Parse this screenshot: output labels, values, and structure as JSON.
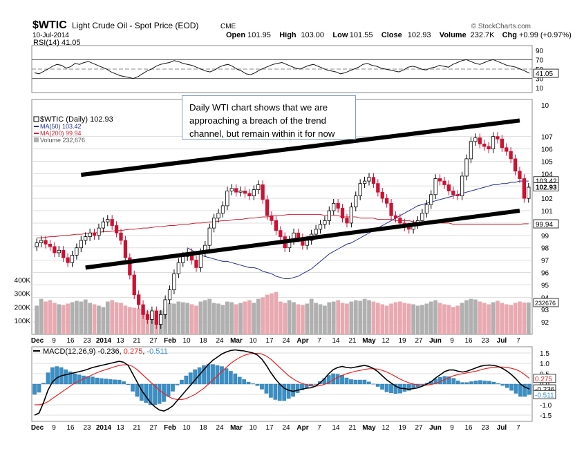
{
  "header": {
    "symbol": "$WTIC",
    "name": "Light Crude Oil - Spot Price (EOD)",
    "exchange": "CME",
    "date": "10-Jul-2014",
    "brand": "© StockCharts.com",
    "stats": [
      {
        "label": "Open",
        "value": "101.95"
      },
      {
        "label": "High",
        "value": "103.00"
      },
      {
        "label": "Low",
        "value": "101.55"
      },
      {
        "label": "Close",
        "value": "102.93"
      },
      {
        "label": "Volume",
        "value": "232.7K"
      },
      {
        "label": "Chg",
        "value": "+0.99 (+0.97%)"
      }
    ]
  },
  "annotation": {
    "lines": [
      "Daily WTI chart shows that we are",
      "approaching a breach of the trend",
      "channel, but remain within it for now"
    ]
  },
  "colors": {
    "up": "#000000",
    "down": "#cc1133",
    "ma50": "#1f2e8f",
    "ma200": "#cc2233",
    "vol_up": "#b0b0b0",
    "vol_down": "#e8a9b1",
    "macd_hist": "#3a8fc4",
    "signal": "#ee2222",
    "grid": "#dddddd",
    "trendline": "#000000"
  },
  "chart_data": [
    {
      "type": "line",
      "title": "RSI(14) 41.05",
      "ylim": [
        0,
        100
      ],
      "ticks": [
        "90",
        "70",
        "50",
        "30",
        "10"
      ],
      "tick_values": [
        90,
        70,
        50,
        30,
        10
      ],
      "last_label": "41.05",
      "series": [
        {
          "name": "RSI(14)",
          "values": [
            42,
            40,
            45,
            50,
            56,
            60,
            58,
            52,
            55,
            62,
            60,
            64,
            66,
            62,
            58,
            54,
            50,
            44,
            40,
            36,
            34,
            32,
            30,
            34,
            40,
            46,
            50,
            56,
            60,
            62,
            64,
            68,
            66,
            62,
            60,
            58,
            54,
            50,
            46,
            44,
            48,
            54,
            58,
            60,
            56,
            50,
            46,
            40,
            38,
            42,
            48,
            52,
            56,
            60,
            62,
            64,
            60,
            56,
            52,
            50,
            54,
            58,
            60,
            56,
            52,
            48,
            46,
            44,
            40,
            42,
            46,
            50,
            54,
            60,
            62,
            58,
            56,
            52,
            50,
            48,
            46,
            44,
            48,
            54,
            56,
            54,
            50,
            48,
            52,
            54,
            58,
            56,
            54,
            60,
            64,
            68,
            70,
            66,
            62,
            60,
            64,
            68,
            70,
            66,
            62,
            58,
            56,
            54,
            50,
            46,
            41
          ]
        }
      ]
    },
    {
      "type": "candlestick",
      "title": "$WTIC (Daily) 102.93",
      "legend": [
        "$WTIC (Daily) 102.93",
        "MA(50) 103.42",
        "MA(200) 99.94",
        "Volume 232,676"
      ],
      "ylim": [
        91,
        110
      ],
      "y_ticks": [
        107,
        106,
        105,
        104,
        103,
        102,
        101,
        100,
        99,
        98,
        97,
        96,
        95,
        94,
        93,
        92
      ],
      "x_tick_labels": [
        "Dec",
        "9",
        "16",
        "23",
        "2014",
        "13",
        "21",
        "27",
        "Feb",
        "10",
        "18",
        "24",
        "Mar",
        "10",
        "17",
        "24",
        "Apr",
        "7",
        "14",
        "21",
        "May",
        "12",
        "19",
        "27",
        "Jun",
        "9",
        "16",
        "23",
        "Jul",
        "7"
      ],
      "x_tick_bold": [
        "Dec",
        "2014",
        "Feb",
        "Mar",
        "Apr",
        "May",
        "Jun",
        "Jul"
      ],
      "close": [
        98.4,
        98.6,
        98.3,
        98.1,
        97.6,
        97.8,
        97.2,
        96.8,
        97.4,
        98.0,
        98.6,
        98.9,
        99.2,
        99.0,
        99.6,
        100.1,
        100.3,
        99.8,
        99.2,
        98.6,
        97.2,
        95.8,
        94.2,
        93.4,
        92.6,
        92.2,
        92.9,
        91.8,
        92.6,
        93.8,
        94.6,
        95.9,
        96.8,
        97.3,
        97.6,
        97.0,
        96.4,
        97.6,
        98.2,
        99.6,
        100.4,
        100.8,
        101.4,
        102.6,
        102.8,
        102.5,
        102.6,
        102.4,
        102.2,
        102.7,
        103.1,
        101.9,
        100.6,
        100.2,
        99.4,
        98.9,
        98.0,
        98.6,
        99.2,
        98.8,
        98.2,
        98.6,
        99.1,
        99.5,
        99.9,
        100.2,
        101.0,
        101.6,
        101.2,
        100.4,
        100.0,
        101.3,
        102.2,
        103.2,
        103.4,
        103.7,
        103.2,
        102.5,
        102.0,
        101.6,
        100.6,
        100.4,
        100.0,
        99.7,
        99.5,
        99.9,
        100.2,
        100.8,
        101.5,
        102.3,
        103.6,
        103.4,
        103.1,
        102.6,
        102.3,
        102.2,
        103.8,
        105.2,
        106.6,
        106.9,
        106.4,
        106.2,
        106.0,
        107.0,
        106.8,
        106.1,
        105.8,
        105.2,
        104.2,
        103.6,
        102.0,
        102.9
      ],
      "ma50": [
        98.0,
        97.8,
        97.6,
        97.4,
        97.3,
        97.2,
        97.1,
        97.0,
        96.9,
        96.9,
        96.8,
        96.7,
        96.6,
        96.5,
        96.4,
        96.4,
        96.3,
        96.1,
        96.0,
        95.9,
        95.7,
        95.6,
        95.5,
        95.5,
        95.6,
        95.7,
        95.9,
        96.1,
        96.3,
        96.6,
        96.9,
        97.2,
        97.5,
        97.7,
        97.9,
        98.1,
        98.3,
        98.4,
        98.6,
        98.8,
        99.0,
        99.2,
        99.4,
        99.6,
        99.8,
        100.0,
        100.2,
        100.4,
        100.6,
        100.8,
        101.0,
        101.2,
        101.4,
        101.5,
        101.6,
        101.7,
        101.8,
        101.9,
        102.0,
        102.1,
        102.2,
        102.3,
        102.4,
        102.5,
        102.6,
        102.7,
        102.8,
        102.9,
        103.0,
        103.1,
        103.1,
        103.2,
        103.2,
        103.3,
        103.3,
        103.4,
        103.4,
        103.4
      ],
      "ma50_start_index": 34,
      "ma200": [
        98.8,
        98.8,
        98.85,
        98.9,
        98.9,
        98.95,
        99.0,
        99.0,
        99.05,
        99.1,
        99.1,
        99.15,
        99.2,
        99.2,
        99.25,
        99.3,
        99.3,
        99.35,
        99.4,
        99.4,
        99.45,
        99.5,
        99.5,
        99.55,
        99.6,
        99.6,
        99.65,
        99.7,
        99.7,
        99.75,
        99.8,
        99.8,
        99.85,
        99.9,
        99.9,
        99.95,
        100.0,
        100.0,
        100.05,
        100.1,
        100.1,
        100.15,
        100.2,
        100.2,
        100.25,
        100.3,
        100.3,
        100.35,
        100.4,
        100.4,
        100.45,
        100.5,
        100.5,
        100.55,
        100.6,
        100.6,
        100.65,
        100.7,
        100.7,
        100.7,
        100.7,
        100.7,
        100.7,
        100.7,
        100.7,
        100.6,
        100.6,
        100.6,
        100.6,
        100.5,
        100.5,
        100.5,
        100.5,
        100.4,
        100.4,
        100.4,
        100.4,
        100.3,
        100.3,
        100.3,
        100.3,
        100.2,
        100.2,
        100.2,
        100.2,
        100.1,
        100.1,
        100.1,
        100.1,
        100.0,
        100.0,
        100.0,
        100.0,
        100.0,
        99.9,
        99.9,
        99.9,
        99.9,
        99.9,
        99.9,
        99.9,
        99.9,
        99.9,
        99.9,
        99.9,
        99.9,
        99.9,
        99.9,
        99.9,
        99.9,
        99.94,
        99.94
      ],
      "trendlines": [
        {
          "from": [
            10,
            103.9
          ],
          "to": [
            109,
            108.3
          ]
        },
        {
          "from": [
            11,
            96.4
          ],
          "to": [
            109,
            101.0
          ]
        }
      ],
      "right_labels": [
        {
          "text": "103.42",
          "value": 103.42
        },
        {
          "text": "102.93",
          "value": 102.93,
          "bold": true
        },
        {
          "text": "99.94",
          "value": 99.94
        }
      ]
    },
    {
      "type": "bar",
      "title": "Volume",
      "ylim": [
        0,
        450000
      ],
      "y_ticks": [
        "400K",
        "300K",
        "200K",
        "100K"
      ],
      "y_tick_values": [
        400000,
        300000,
        200000,
        100000
      ],
      "last_label": "232676",
      "values": [
        210000,
        260000,
        240000,
        250000,
        230000,
        220000,
        215000,
        225000,
        235000,
        245000,
        240000,
        255000,
        230000,
        220000,
        210000,
        200000,
        240000,
        250000,
        235000,
        230000,
        210000,
        200000,
        195000,
        190000,
        180000,
        170000,
        165000,
        150000,
        175000,
        200000,
        230000,
        225000,
        240000,
        235000,
        230000,
        220000,
        210000,
        240000,
        250000,
        260000,
        230000,
        225000,
        215000,
        240000,
        235000,
        220000,
        230000,
        240000,
        250000,
        230000,
        260000,
        270000,
        290000,
        300000,
        310000,
        240000,
        230000,
        250000,
        235000,
        220000,
        215000,
        225000,
        260000,
        230000,
        220000,
        210000,
        235000,
        240000,
        250000,
        230000,
        225000,
        240000,
        250000,
        245000,
        260000,
        250000,
        240000,
        230000,
        220000,
        210000,
        225000,
        235000,
        240000,
        230000,
        225000,
        220000,
        210000,
        215000,
        225000,
        240000,
        250000,
        230000,
        220000,
        215000,
        200000,
        210000,
        230000,
        250000,
        260000,
        255000,
        240000,
        230000,
        220000,
        235000,
        245000,
        230000,
        220000,
        215000,
        230000,
        240000,
        232676,
        233000
      ]
    },
    {
      "type": "line",
      "title": "MACD(12,26,9) -0.236, 0.275, -0.511",
      "title_parts": [
        {
          "text": "MACD(12,26,9) -0.236, ",
          "color": "#000000"
        },
        {
          "text": "0.275",
          "color": "#ee2222"
        },
        {
          "text": ", ",
          "color": "#000000"
        },
        {
          "text": "-0.511",
          "color": "#3a8fc4"
        }
      ],
      "ylim": [
        -1.8,
        1.8
      ],
      "y_ticks": [
        "1.5",
        "1.0",
        "0.5",
        "0.0",
        "-0.5",
        "-1.0",
        "-1.5"
      ],
      "y_tick_values": [
        1.5,
        1.0,
        0.5,
        0.0,
        -0.5,
        -1.0,
        -1.5
      ],
      "right_labels": [
        {
          "text": "0.275",
          "value": 0.275,
          "color": "#ee2222"
        },
        {
          "text": "-0.236",
          "value": -0.236
        },
        {
          "text": "-0.511",
          "value": -0.511,
          "color": "#3a8fc4"
        }
      ],
      "series": [
        {
          "name": "MACD",
          "values": [
            -1.5,
            -1.4,
            -0.9,
            -0.3,
            0.1,
            0.3,
            0.4,
            0.45,
            0.5,
            0.55,
            0.6,
            0.65,
            0.72,
            0.8,
            0.85,
            0.9,
            0.95,
            1.0,
            1.05,
            1.1,
            1.05,
            0.9,
            0.5,
            0.1,
            -0.3,
            -0.6,
            -0.9,
            -1.1,
            -1.25,
            -1.3,
            -1.2,
            -1.05,
            -0.8,
            -0.55,
            -0.3,
            -0.05,
            0.2,
            0.45,
            0.7,
            0.95,
            1.15,
            1.3,
            1.45,
            1.55,
            1.62,
            1.65,
            1.62,
            1.6,
            1.55,
            1.5,
            1.4,
            1.2,
            0.9,
            0.55,
            0.25,
            0.0,
            -0.2,
            -0.3,
            -0.35,
            -0.3,
            -0.25,
            -0.2,
            -0.18,
            -0.1,
            0.05,
            0.25,
            0.5,
            0.7,
            0.8,
            0.85,
            0.8,
            0.78,
            0.82,
            0.86,
            0.9,
            0.85,
            0.75,
            0.6,
            0.4,
            0.2,
            0.05,
            -0.1,
            -0.2,
            -0.22,
            -0.25,
            -0.22,
            -0.18,
            -0.1,
            0.0,
            0.12,
            0.3,
            0.45,
            0.6,
            0.68,
            0.68,
            0.62,
            0.58,
            0.62,
            0.7,
            0.78,
            0.86,
            0.9,
            0.92,
            0.9,
            0.85,
            0.75,
            0.62,
            0.45,
            0.25,
            0.0,
            -0.15,
            -0.236
          ]
        },
        {
          "name": "Signal",
          "values": [
            -1.0,
            -1.0,
            -0.95,
            -0.85,
            -0.7,
            -0.55,
            -0.4,
            -0.25,
            -0.1,
            0.05,
            0.15,
            0.25,
            0.35,
            0.45,
            0.55,
            0.63,
            0.7,
            0.77,
            0.84,
            0.9,
            0.93,
            0.93,
            0.85,
            0.7,
            0.5,
            0.3,
            0.1,
            -0.1,
            -0.3,
            -0.45,
            -0.6,
            -0.7,
            -0.75,
            -0.75,
            -0.7,
            -0.6,
            -0.5,
            -0.35,
            -0.2,
            0.0,
            0.2,
            0.4,
            0.6,
            0.8,
            1.0,
            1.15,
            1.28,
            1.38,
            1.45,
            1.48,
            1.48,
            1.45,
            1.35,
            1.2,
            1.0,
            0.8,
            0.6,
            0.4,
            0.25,
            0.12,
            0.03,
            -0.03,
            -0.08,
            -0.1,
            -0.08,
            -0.02,
            0.08,
            0.2,
            0.32,
            0.42,
            0.5,
            0.56,
            0.62,
            0.66,
            0.7,
            0.74,
            0.74,
            0.72,
            0.66,
            0.58,
            0.48,
            0.36,
            0.24,
            0.14,
            0.06,
            0.0,
            -0.04,
            -0.06,
            -0.05,
            -0.02,
            0.04,
            0.12,
            0.22,
            0.32,
            0.4,
            0.46,
            0.5,
            0.54,
            0.58,
            0.62,
            0.68,
            0.74,
            0.78,
            0.8,
            0.82,
            0.82,
            0.8,
            0.76,
            0.7,
            0.6,
            0.45,
            0.275
          ]
        }
      ]
    }
  ]
}
